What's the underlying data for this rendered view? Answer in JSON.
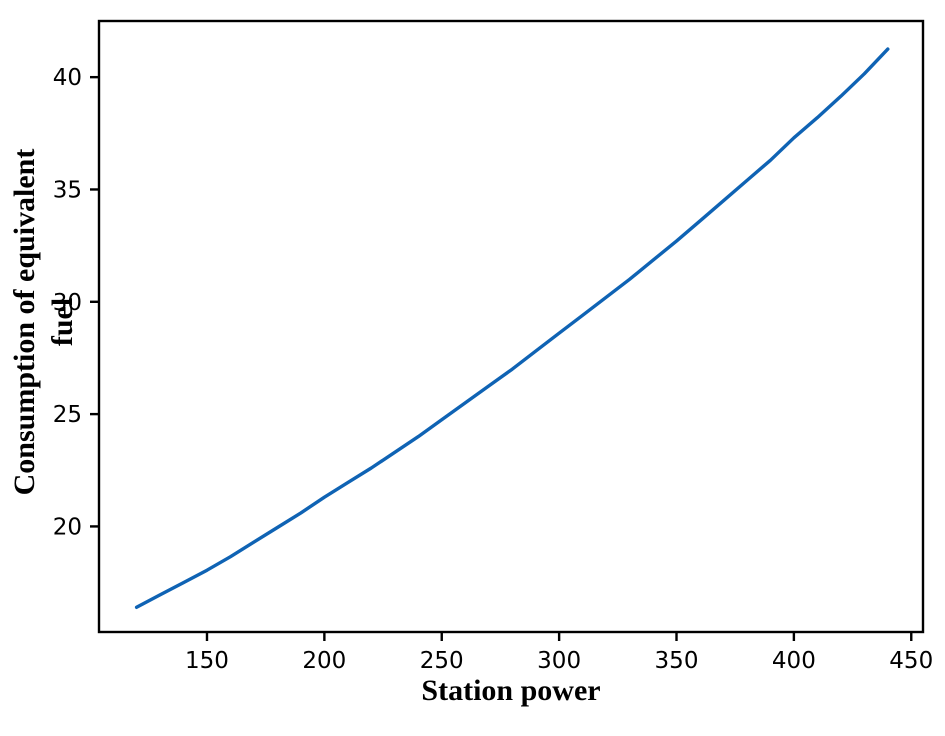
{
  "figure": {
    "background": "#ffffff",
    "axis_color": "#000000",
    "tick_label_color": "#000000"
  },
  "chart_data": {
    "type": "line",
    "title": "",
    "xlabel": "Station power",
    "ylabel": "Consumption of equivalent fuel",
    "ylabel_lines": [
      "Consumption of equivalent",
      "fuel"
    ],
    "xlim": [
      104,
      455
    ],
    "ylim": [
      15.3,
      42.5
    ],
    "x_ticks": [
      150,
      200,
      250,
      300,
      350,
      400,
      450
    ],
    "y_ticks": [
      20,
      25,
      30,
      35,
      40
    ],
    "grid": false,
    "frame_box": true,
    "legend_position": "none",
    "series": [
      {
        "name": "equivalent-fuel-consumption",
        "color": "#0f63b4",
        "line_width": 3.4,
        "x": [
          120,
          130,
          140,
          150,
          160,
          170,
          180,
          190,
          200,
          210,
          220,
          230,
          240,
          250,
          260,
          270,
          280,
          290,
          300,
          310,
          320,
          330,
          340,
          350,
          360,
          370,
          380,
          390,
          400,
          410,
          420,
          430,
          440
        ],
        "y": [
          16.4,
          16.95,
          17.5,
          18.05,
          18.65,
          19.3,
          19.95,
          20.6,
          21.3,
          21.95,
          22.6,
          23.3,
          24.0,
          24.75,
          25.5,
          26.25,
          27.0,
          27.8,
          28.6,
          29.4,
          30.2,
          31.0,
          31.85,
          32.7,
          33.6,
          34.5,
          35.4,
          36.3,
          37.3,
          38.2,
          39.15,
          40.15,
          41.25
        ]
      }
    ]
  }
}
